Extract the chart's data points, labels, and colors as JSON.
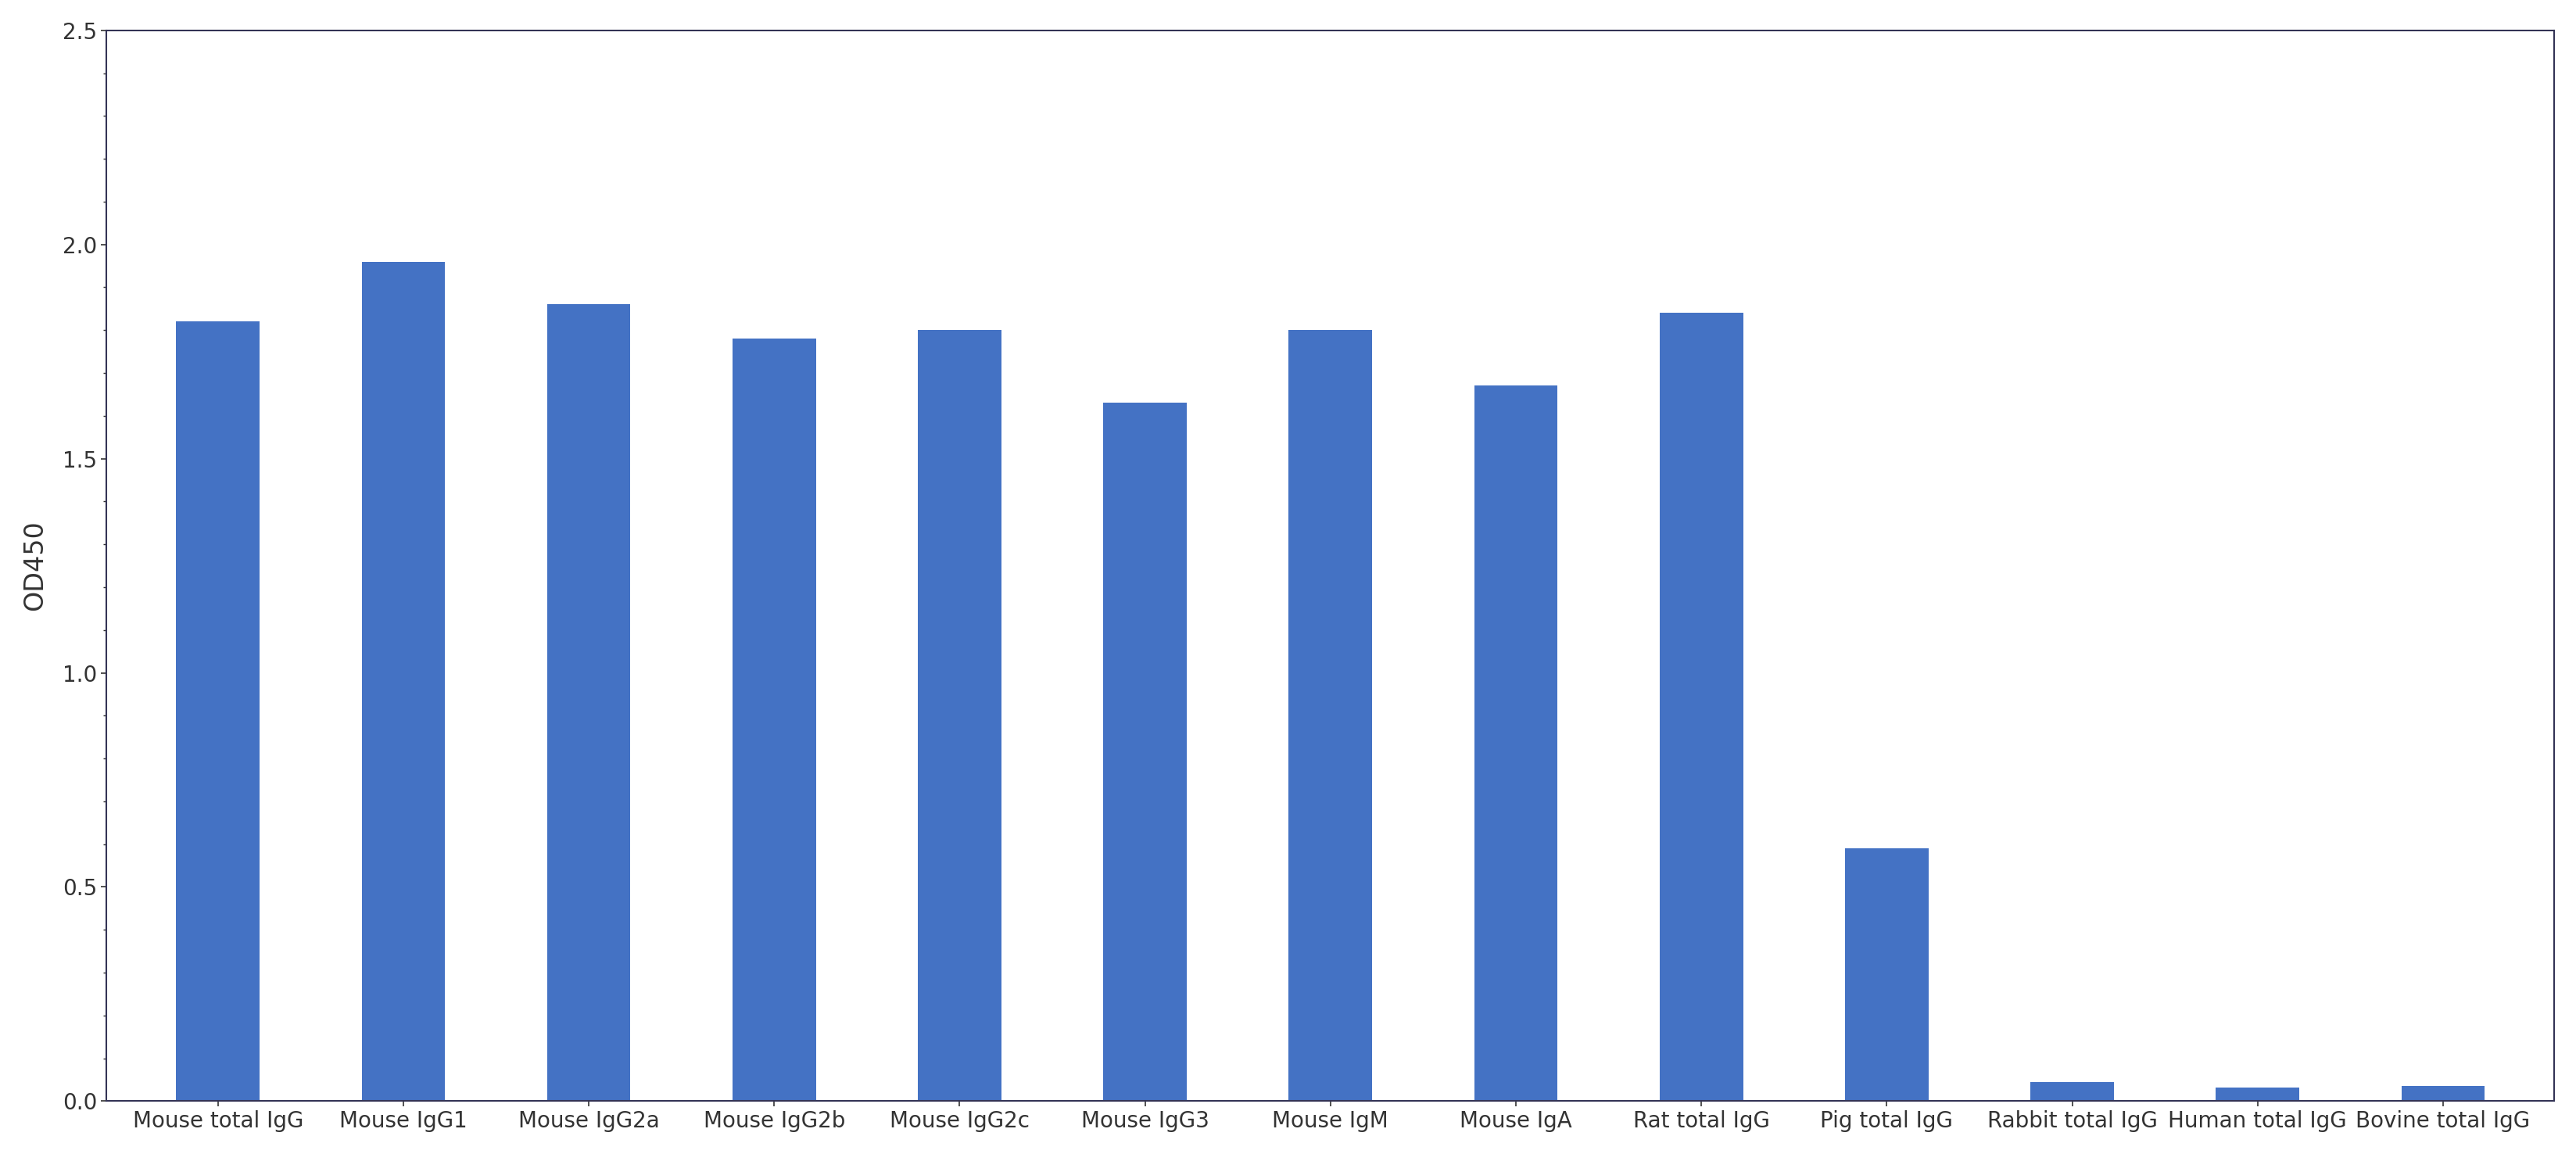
{
  "categories": [
    "Mouse total IgG",
    "Mouse IgG1",
    "Mouse IgG2a",
    "Mouse IgG2b",
    "Mouse IgG2c",
    "Mouse IgG3",
    "Mouse IgM",
    "Mouse IgA",
    "Rat total IgG",
    "Pig total IgG",
    "Rabbit total IgG",
    "Human total IgG",
    "Bovine total IgG"
  ],
  "values": [
    1.82,
    1.96,
    1.86,
    1.78,
    1.8,
    1.63,
    1.8,
    1.67,
    1.84,
    0.59,
    0.045,
    0.032,
    0.035
  ],
  "bar_color": "#4472C4",
  "ylabel": "OD450",
  "ylim": [
    0,
    2.5
  ],
  "yticks": [
    0,
    0.5,
    1,
    1.5,
    2,
    2.5
  ],
  "background_color": "#ffffff",
  "bar_width": 0.45,
  "tick_fontsize": 20,
  "ylabel_fontsize": 24,
  "spine_color": "#333355",
  "spine_linewidth": 1.5
}
